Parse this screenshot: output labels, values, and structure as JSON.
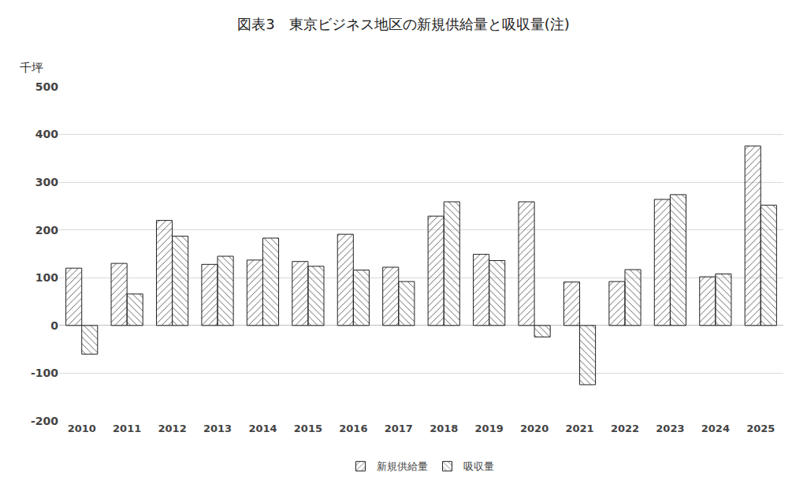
{
  "chart_data": {
    "type": "bar",
    "title": "図表3　東京ビジネス地区の新規供給量と吸収量(注)",
    "ylabel": "千坪",
    "categories": [
      "2010",
      "2011",
      "2012",
      "2013",
      "2014",
      "2015",
      "2016",
      "2017",
      "2018",
      "2019",
      "2020",
      "2021",
      "2022",
      "2023",
      "2024",
      "2025"
    ],
    "series": [
      {
        "name": "新規供給量",
        "color": "#e8a3ab",
        "values": [
          120,
          130,
          220,
          128,
          137,
          134,
          191,
          122,
          229,
          149,
          259,
          91,
          92,
          264,
          102,
          376
        ]
      },
      {
        "name": "吸収量",
        "color": "#a9d3e6",
        "values": [
          -60,
          66,
          187,
          145,
          183,
          124,
          116,
          92,
          259,
          136,
          -24,
          -124,
          117,
          274,
          108,
          252
        ]
      }
    ],
    "ylim": [
      -200,
      500
    ],
    "yticks": [
      -200,
      -100,
      0,
      100,
      200,
      300,
      400,
      500
    ],
    "grid": true,
    "legend": "bottom"
  }
}
